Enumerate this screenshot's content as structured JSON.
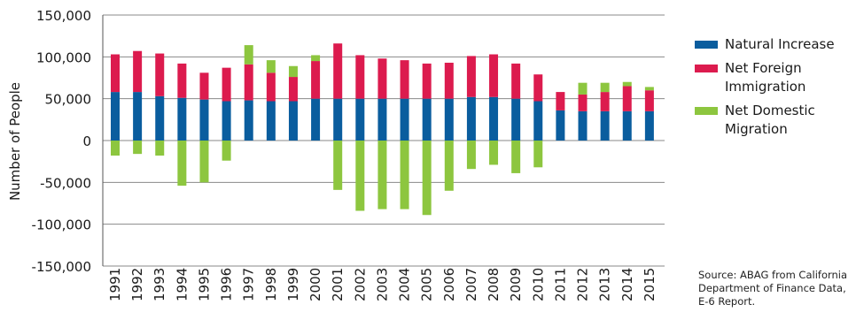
{
  "chart_data": {
    "type": "bar",
    "stacked": true,
    "ylabel": "Number of People",
    "ylim": [
      -150000,
      150000
    ],
    "yticks": [
      {
        "value": 150000,
        "label": "150,000"
      },
      {
        "value": 100000,
        "label": "100,000"
      },
      {
        "value": 50000,
        "label": "50,000"
      },
      {
        "value": 0,
        "label": "0"
      },
      {
        "value": -50000,
        "label": "-50,000"
      },
      {
        "value": -100000,
        "label": "-100,000"
      },
      {
        "value": -150000,
        "label": "-150,000"
      }
    ],
    "grid": true,
    "legend_position": "right",
    "categories": [
      "1991",
      "1992",
      "1993",
      "1994",
      "1995",
      "1996",
      "1997",
      "1998",
      "1999",
      "2000",
      "2001",
      "2002",
      "2003",
      "2004",
      "2005",
      "2006",
      "2007",
      "2008",
      "2009",
      "2010",
      "2011",
      "2012",
      "2013",
      "2014",
      "2015"
    ],
    "series": [
      {
        "name": "Natural Increase",
        "color": "#0a5d9e",
        "values": [
          58000,
          58000,
          53000,
          51000,
          49000,
          47000,
          48000,
          47000,
          47000,
          50000,
          50000,
          50000,
          50000,
          50000,
          50000,
          50000,
          52000,
          52000,
          50000,
          47000,
          36000,
          35000,
          35000,
          35000,
          35000
        ]
      },
      {
        "name": "Net Foreign Immigration",
        "color": "#dc1b4e",
        "values": [
          45000,
          49000,
          51000,
          41000,
          32000,
          40000,
          43000,
          34000,
          29000,
          45000,
          66000,
          52000,
          48000,
          46000,
          42000,
          43000,
          49000,
          51000,
          42000,
          32000,
          22000,
          20000,
          23000,
          30000,
          25000
        ]
      },
      {
        "name": "Net Domestic Migration",
        "color": "#8dc63f",
        "values": [
          -18000,
          -16000,
          -18000,
          -54000,
          -50000,
          -24000,
          23000,
          15000,
          13000,
          7000,
          -59000,
          -84000,
          -82000,
          -82000,
          -89000,
          -60000,
          -34000,
          -29000,
          -39000,
          -32000,
          0,
          14000,
          11000,
          5000,
          4000
        ]
      }
    ]
  },
  "legend": [
    {
      "label": "Natural Increase",
      "color": "#0a5d9e"
    },
    {
      "label": "Net Foreign Immigration",
      "color": "#dc1b4e"
    },
    {
      "label": "Net Domestic Migration",
      "color": "#8dc63f"
    }
  ],
  "source_text": "Source: ABAG from California Department of Finance Data, E-6 Report."
}
